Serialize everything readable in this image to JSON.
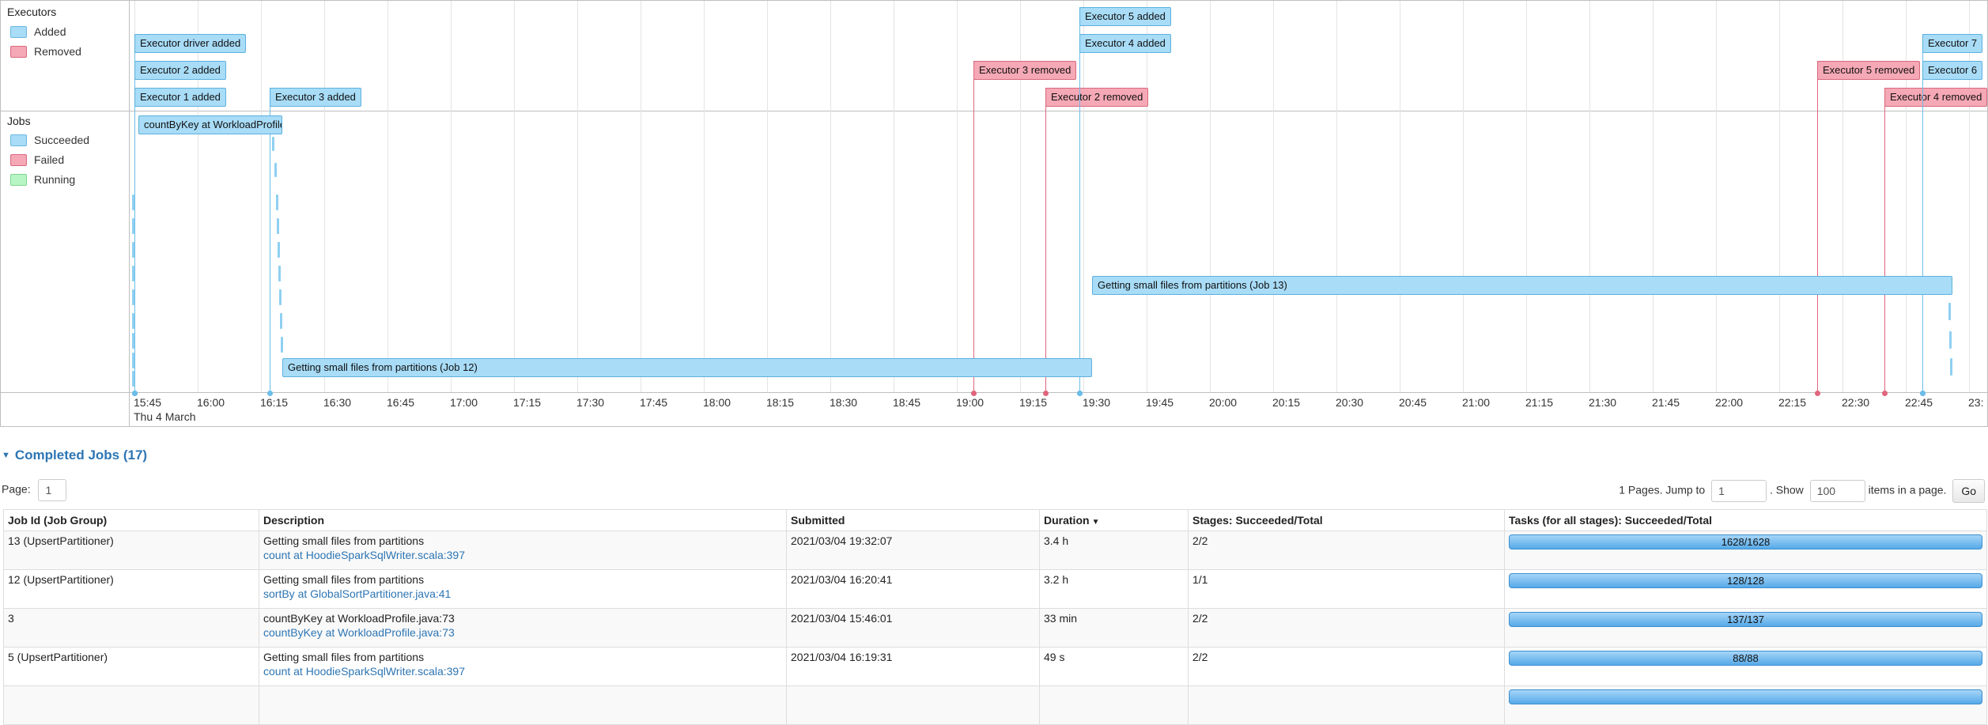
{
  "timeline": {
    "executors_legend": {
      "title": "Executors",
      "items": [
        {
          "label": "Added",
          "color": "#a8dcf7"
        },
        {
          "label": "Removed",
          "color": "#f5a8b5"
        }
      ]
    },
    "jobs_legend": {
      "title": "Jobs",
      "items": [
        {
          "label": "Succeeded",
          "color": "#a8dcf7"
        },
        {
          "label": "Failed",
          "color": "#f5a8b5"
        },
        {
          "label": "Running",
          "color": "#b8f5c4"
        }
      ]
    },
    "ticks": [
      "15:45",
      "16:00",
      "16:15",
      "16:30",
      "16:45",
      "17:00",
      "17:15",
      "17:30",
      "17:45",
      "18:00",
      "18:15",
      "18:30",
      "18:45",
      "19:00",
      "19:15",
      "19:30",
      "19:45",
      "20:00",
      "20:15",
      "20:30",
      "20:45",
      "21:00",
      "21:15",
      "21:30",
      "21:45",
      "22:00",
      "22:15",
      "22:30",
      "22:45",
      "23:"
    ],
    "date_label": "Thu 4 March",
    "executor_events": [
      {
        "label": "Executor driver added",
        "type": "added",
        "time": "15:45",
        "row": 2
      },
      {
        "label": "Executor 2 added",
        "type": "added",
        "time": "15:45",
        "row": 1
      },
      {
        "label": "Executor 1 added",
        "type": "added",
        "time": "15:45",
        "row": 0
      },
      {
        "label": "Executor 3 added",
        "type": "added",
        "time": "16:17",
        "row": 0
      },
      {
        "label": "Executor 3 removed",
        "type": "removed",
        "time": "19:04",
        "row": 1
      },
      {
        "label": "Executor 2 removed",
        "type": "removed",
        "time": "19:21",
        "row": 0
      },
      {
        "label": "Executor 5 added",
        "type": "added",
        "time": "19:29",
        "row": 3
      },
      {
        "label": "Executor 4 added",
        "type": "added",
        "time": "19:29",
        "row": 2
      },
      {
        "label": "Executor 5 removed",
        "type": "removed",
        "time": "22:24",
        "row": 1
      },
      {
        "label": "Executor 4 removed",
        "type": "removed",
        "time": "22:40",
        "row": 0
      },
      {
        "label": "Executor 7",
        "type": "added",
        "time": "22:49",
        "row": 2
      },
      {
        "label": "Executor 6",
        "type": "added",
        "time": "22:49",
        "row": 1
      }
    ],
    "job_bars": [
      {
        "label": "countByKey at WorkloadProfile.j",
        "start": "15:46",
        "end": "16:20",
        "row": "top"
      },
      {
        "label": "Getting small files from partitions (Job 13)",
        "start": "19:32",
        "end": "22:56",
        "row": "mid"
      },
      {
        "label": "Getting small files from partitions (Job 12)",
        "start": "16:20",
        "end": "19:32",
        "row": "low"
      }
    ]
  },
  "completed": {
    "header": "Completed Jobs (17)",
    "page_label": "Page:",
    "page_value": "1",
    "pages_text": "1 Pages. Jump to",
    "jump_value": "1",
    "show_text": ". Show",
    "show_value": "100",
    "items_text": "items in a page.",
    "go_label": "Go",
    "columns": [
      "Job Id (Job Group)",
      "Description",
      "Submitted",
      "Duration",
      "Stages: Succeeded/Total",
      "Tasks (for all stages): Succeeded/Total"
    ],
    "rows": [
      {
        "id": "13 (UpsertPartitioner)",
        "desc": "Getting small files from partitions",
        "link": "count at HoodieSparkSqlWriter.scala:397",
        "submitted": "2021/03/04 19:32:07",
        "duration": "3.4 h",
        "stages": "2/2",
        "tasks": "1628/1628",
        "progress": 1.0
      },
      {
        "id": "12 (UpsertPartitioner)",
        "desc": "Getting small files from partitions",
        "link": "sortBy at GlobalSortPartitioner.java:41",
        "submitted": "2021/03/04 16:20:41",
        "duration": "3.2 h",
        "stages": "1/1",
        "tasks": "128/128",
        "progress": 1.0
      },
      {
        "id": "3",
        "desc": "countByKey at WorkloadProfile.java:73",
        "link": "countByKey at WorkloadProfile.java:73",
        "submitted": "2021/03/04 15:46:01",
        "duration": "33 min",
        "stages": "2/2",
        "tasks": "137/137",
        "progress": 1.0
      },
      {
        "id": "5 (UpsertPartitioner)",
        "desc": "Getting small files from partitions",
        "link": "count at HoodieSparkSqlWriter.scala:397",
        "submitted": "2021/03/04 16:19:31",
        "duration": "49 s",
        "stages": "2/2",
        "tasks": "88/88",
        "progress": 1.0
      },
      {
        "id": "",
        "desc": "",
        "link": "",
        "submitted": "",
        "duration": "",
        "stages": "",
        "tasks": "",
        "progress": 1.0
      }
    ]
  }
}
